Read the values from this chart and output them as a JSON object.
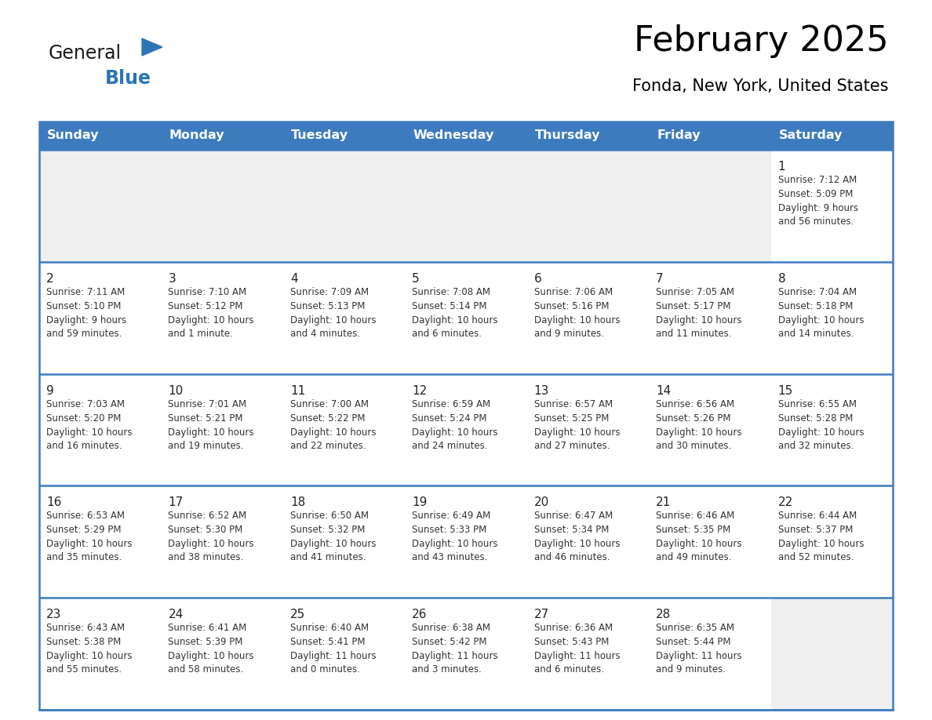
{
  "title": "February 2025",
  "subtitle": "Fonda, New York, United States",
  "header_bg": "#3D7BBF",
  "header_text_color": "#FFFFFF",
  "cell_bg_light": "#EFEFEF",
  "cell_bg_white": "#FFFFFF",
  "row_separator_color": "#3D7BBF",
  "day_names": [
    "Sunday",
    "Monday",
    "Tuesday",
    "Wednesday",
    "Thursday",
    "Friday",
    "Saturday"
  ],
  "calendar_data": [
    [
      null,
      null,
      null,
      null,
      null,
      null,
      {
        "day": 1,
        "sunrise": "Sunrise: 7:12 AM",
        "sunset": "Sunset: 5:09 PM",
        "daylight": "Daylight: 9 hours\nand 56 minutes."
      }
    ],
    [
      {
        "day": 2,
        "sunrise": "Sunrise: 7:11 AM",
        "sunset": "Sunset: 5:10 PM",
        "daylight": "Daylight: 9 hours\nand 59 minutes."
      },
      {
        "day": 3,
        "sunrise": "Sunrise: 7:10 AM",
        "sunset": "Sunset: 5:12 PM",
        "daylight": "Daylight: 10 hours\nand 1 minute."
      },
      {
        "day": 4,
        "sunrise": "Sunrise: 7:09 AM",
        "sunset": "Sunset: 5:13 PM",
        "daylight": "Daylight: 10 hours\nand 4 minutes."
      },
      {
        "day": 5,
        "sunrise": "Sunrise: 7:08 AM",
        "sunset": "Sunset: 5:14 PM",
        "daylight": "Daylight: 10 hours\nand 6 minutes."
      },
      {
        "day": 6,
        "sunrise": "Sunrise: 7:06 AM",
        "sunset": "Sunset: 5:16 PM",
        "daylight": "Daylight: 10 hours\nand 9 minutes."
      },
      {
        "day": 7,
        "sunrise": "Sunrise: 7:05 AM",
        "sunset": "Sunset: 5:17 PM",
        "daylight": "Daylight: 10 hours\nand 11 minutes."
      },
      {
        "day": 8,
        "sunrise": "Sunrise: 7:04 AM",
        "sunset": "Sunset: 5:18 PM",
        "daylight": "Daylight: 10 hours\nand 14 minutes."
      }
    ],
    [
      {
        "day": 9,
        "sunrise": "Sunrise: 7:03 AM",
        "sunset": "Sunset: 5:20 PM",
        "daylight": "Daylight: 10 hours\nand 16 minutes."
      },
      {
        "day": 10,
        "sunrise": "Sunrise: 7:01 AM",
        "sunset": "Sunset: 5:21 PM",
        "daylight": "Daylight: 10 hours\nand 19 minutes."
      },
      {
        "day": 11,
        "sunrise": "Sunrise: 7:00 AM",
        "sunset": "Sunset: 5:22 PM",
        "daylight": "Daylight: 10 hours\nand 22 minutes."
      },
      {
        "day": 12,
        "sunrise": "Sunrise: 6:59 AM",
        "sunset": "Sunset: 5:24 PM",
        "daylight": "Daylight: 10 hours\nand 24 minutes."
      },
      {
        "day": 13,
        "sunrise": "Sunrise: 6:57 AM",
        "sunset": "Sunset: 5:25 PM",
        "daylight": "Daylight: 10 hours\nand 27 minutes."
      },
      {
        "day": 14,
        "sunrise": "Sunrise: 6:56 AM",
        "sunset": "Sunset: 5:26 PM",
        "daylight": "Daylight: 10 hours\nand 30 minutes."
      },
      {
        "day": 15,
        "sunrise": "Sunrise: 6:55 AM",
        "sunset": "Sunset: 5:28 PM",
        "daylight": "Daylight: 10 hours\nand 32 minutes."
      }
    ],
    [
      {
        "day": 16,
        "sunrise": "Sunrise: 6:53 AM",
        "sunset": "Sunset: 5:29 PM",
        "daylight": "Daylight: 10 hours\nand 35 minutes."
      },
      {
        "day": 17,
        "sunrise": "Sunrise: 6:52 AM",
        "sunset": "Sunset: 5:30 PM",
        "daylight": "Daylight: 10 hours\nand 38 minutes."
      },
      {
        "day": 18,
        "sunrise": "Sunrise: 6:50 AM",
        "sunset": "Sunset: 5:32 PM",
        "daylight": "Daylight: 10 hours\nand 41 minutes."
      },
      {
        "day": 19,
        "sunrise": "Sunrise: 6:49 AM",
        "sunset": "Sunset: 5:33 PM",
        "daylight": "Daylight: 10 hours\nand 43 minutes."
      },
      {
        "day": 20,
        "sunrise": "Sunrise: 6:47 AM",
        "sunset": "Sunset: 5:34 PM",
        "daylight": "Daylight: 10 hours\nand 46 minutes."
      },
      {
        "day": 21,
        "sunrise": "Sunrise: 6:46 AM",
        "sunset": "Sunset: 5:35 PM",
        "daylight": "Daylight: 10 hours\nand 49 minutes."
      },
      {
        "day": 22,
        "sunrise": "Sunrise: 6:44 AM",
        "sunset": "Sunset: 5:37 PM",
        "daylight": "Daylight: 10 hours\nand 52 minutes."
      }
    ],
    [
      {
        "day": 23,
        "sunrise": "Sunrise: 6:43 AM",
        "sunset": "Sunset: 5:38 PM",
        "daylight": "Daylight: 10 hours\nand 55 minutes."
      },
      {
        "day": 24,
        "sunrise": "Sunrise: 6:41 AM",
        "sunset": "Sunset: 5:39 PM",
        "daylight": "Daylight: 10 hours\nand 58 minutes."
      },
      {
        "day": 25,
        "sunrise": "Sunrise: 6:40 AM",
        "sunset": "Sunset: 5:41 PM",
        "daylight": "Daylight: 11 hours\nand 0 minutes."
      },
      {
        "day": 26,
        "sunrise": "Sunrise: 6:38 AM",
        "sunset": "Sunset: 5:42 PM",
        "daylight": "Daylight: 11 hours\nand 3 minutes."
      },
      {
        "day": 27,
        "sunrise": "Sunrise: 6:36 AM",
        "sunset": "Sunset: 5:43 PM",
        "daylight": "Daylight: 11 hours\nand 6 minutes."
      },
      {
        "day": 28,
        "sunrise": "Sunrise: 6:35 AM",
        "sunset": "Sunset: 5:44 PM",
        "daylight": "Daylight: 11 hours\nand 9 minutes."
      },
      null
    ]
  ],
  "logo_general_color": "#1a1a1a",
  "logo_blue_color": "#2E75B6",
  "logo_triangle_color": "#2E75B6"
}
